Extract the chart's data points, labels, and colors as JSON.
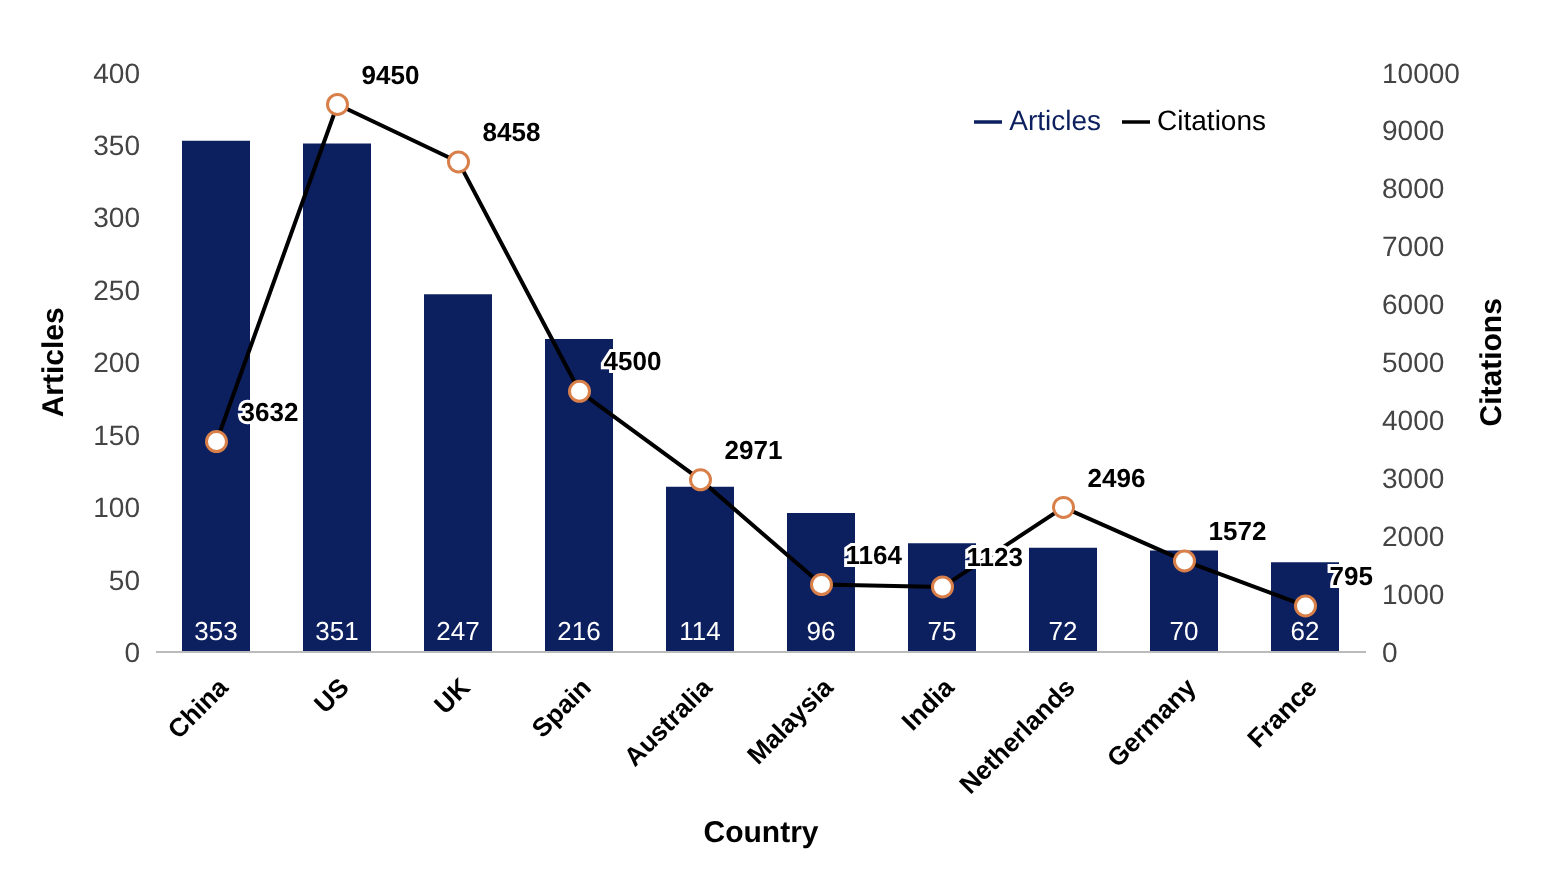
{
  "chart_data": {
    "type": "bar",
    "xlabel": "Country",
    "ylabel": "Articles",
    "y2label": "Citations",
    "categories": [
      "China",
      "US",
      "UK",
      "Spain",
      "Australia",
      "Malaysia",
      "India",
      "Netherlands",
      "Germany",
      "France"
    ],
    "series": [
      {
        "name": "Articles",
        "color": "#0c1f5e",
        "values": [
          353,
          351,
          247,
          216,
          114,
          96,
          75,
          72,
          70,
          62
        ]
      },
      {
        "name": "Citations",
        "type": "line",
        "axis": "y2",
        "color": "#000000",
        "marker": "circle",
        "values": [
          3632,
          9450,
          8458,
          4500,
          2971,
          1164,
          1123,
          2496,
          1572,
          795
        ]
      }
    ],
    "ylim": [
      0,
      400
    ],
    "yticks": [
      0,
      50,
      100,
      150,
      200,
      250,
      300,
      350,
      400
    ],
    "y2lim": [
      0,
      10000
    ],
    "y2ticks": [
      0,
      1000,
      2000,
      3000,
      4000,
      5000,
      6000,
      7000,
      8000,
      9000,
      10000
    ],
    "data_labels": true,
    "grid": false,
    "legend": "top right"
  }
}
